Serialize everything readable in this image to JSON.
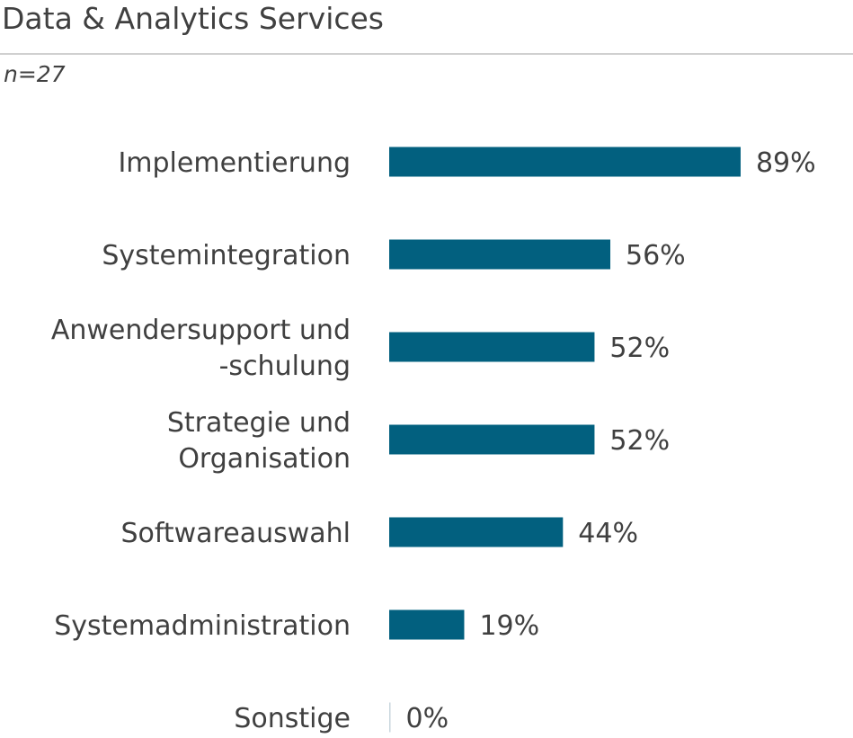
{
  "chart_data": {
    "type": "bar",
    "orientation": "horizontal",
    "title": "Data & Analytics Services",
    "subtitle": "n=27",
    "categories": [
      [
        "Implementierung"
      ],
      [
        "Systemintegration"
      ],
      [
        "Anwendersupport und",
        "-schulung"
      ],
      [
        "Strategie und",
        "Organisation"
      ],
      [
        "Softwareauswahl"
      ],
      [
        "Systemadministration"
      ],
      [
        "Sonstige"
      ]
    ],
    "values": [
      89,
      56,
      52,
      52,
      44,
      19,
      0
    ],
    "value_labels": [
      "89%",
      "56%",
      "52%",
      "52%",
      "44%",
      "19%",
      "0%"
    ],
    "unit": "%",
    "xlim": [
      0,
      100
    ],
    "grid": false,
    "legend": "none",
    "colors": {
      "bar": "#02607f",
      "zero_bar": "#c8d6de",
      "text": "#404040"
    }
  }
}
